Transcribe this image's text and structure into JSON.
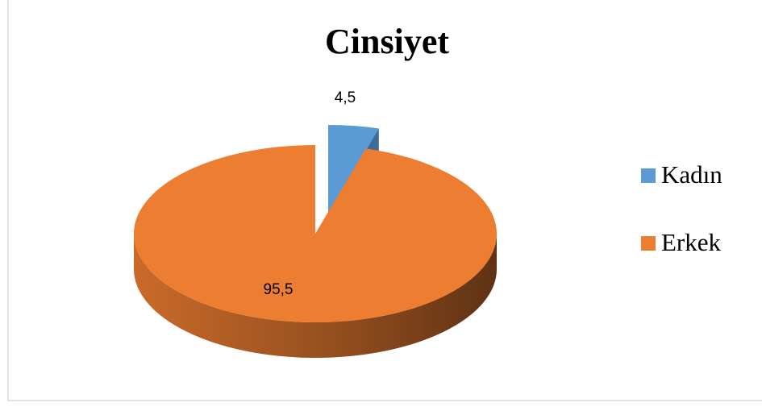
{
  "chart_data": {
    "type": "pie",
    "title": "Cinsiyet",
    "categories": [
      "Kadın",
      "Erkek"
    ],
    "values": [
      4.5,
      95.5
    ],
    "value_labels": [
      "4,5",
      "95,5"
    ],
    "colors": [
      "#5b9bd5",
      "#ed7d31"
    ],
    "legend": "right"
  }
}
